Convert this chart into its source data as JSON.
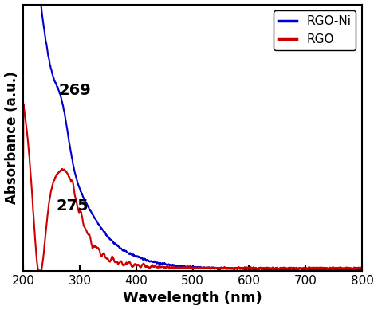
{
  "xlabel": "Wavelength (nm)",
  "ylabel": "Absorbance (a.u.)",
  "xlim": [
    200,
    800
  ],
  "ylim": [
    0.0,
    1.5
  ],
  "legend_labels": [
    "RGO-Ni",
    "RGO"
  ],
  "legend_colors": [
    "#0000cc",
    "#cc0000"
  ],
  "annotation_rgo_ni": {
    "text": "269",
    "fontsize": 14
  },
  "annotation_rgo": {
    "text": "275",
    "fontsize": 14
  },
  "line_width": 1.5,
  "background_color": "#ffffff",
  "axis_linewidth": 1.5
}
